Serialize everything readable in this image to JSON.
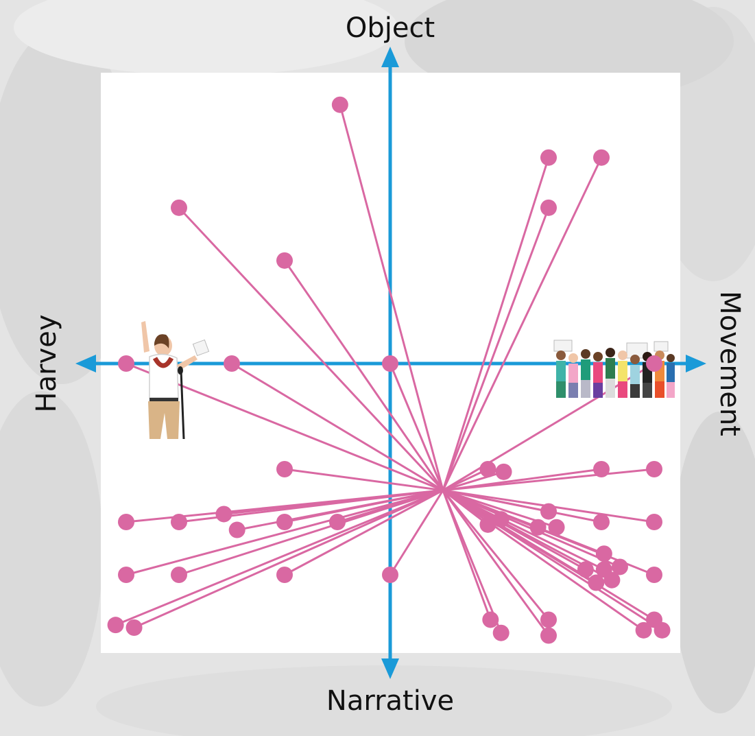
{
  "chart_data": {
    "type": "scatter",
    "axes": {
      "top": "Object",
      "bottom": "Narrative",
      "left": "Harvey",
      "right": "Movement"
    },
    "xlim": [
      -10,
      10
    ],
    "ylim": [
      -10,
      10
    ],
    "grid": false,
    "hub": [
      2,
      -4.8
    ],
    "points": [
      [
        -1.9,
        9.8
      ],
      [
        6.0,
        7.8
      ],
      [
        8.0,
        7.8
      ],
      [
        6.0,
        5.9
      ],
      [
        -8.0,
        5.9
      ],
      [
        -4.0,
        3.9
      ],
      [
        -10.0,
        0
      ],
      [
        -6.0,
        0
      ],
      [
        0,
        0
      ],
      [
        10.0,
        0
      ],
      [
        3.7,
        -4.0
      ],
      [
        4.3,
        -4.1
      ],
      [
        8.0,
        -4.0
      ],
      [
        10.0,
        -4.0
      ],
      [
        -4.0,
        -4.0
      ],
      [
        -10.0,
        -6.0
      ],
      [
        -8.0,
        -6.0
      ],
      [
        -6.3,
        -5.7
      ],
      [
        -5.8,
        -6.3
      ],
      [
        -4.0,
        -6.0
      ],
      [
        -2.0,
        -6.0
      ],
      [
        3.7,
        -6.1
      ],
      [
        4.2,
        -5.9
      ],
      [
        6.0,
        -5.6
      ],
      [
        5.6,
        -6.2
      ],
      [
        6.3,
        -6.2
      ],
      [
        8.0,
        -6.0
      ],
      [
        10.0,
        -6.0
      ],
      [
        8.1,
        -7.2
      ],
      [
        7.4,
        -7.8
      ],
      [
        8.1,
        -7.8
      ],
      [
        8.7,
        -7.7
      ],
      [
        7.8,
        -8.3
      ],
      [
        8.4,
        -8.2
      ],
      [
        -10.0,
        -8.0
      ],
      [
        -8.0,
        -8.0
      ],
      [
        -4.0,
        -8.0
      ],
      [
        0,
        -8.0
      ],
      [
        10.0,
        -8.0
      ],
      [
        3.8,
        -9.7
      ],
      [
        4.2,
        -10.2
      ],
      [
        6.0,
        -9.7
      ],
      [
        6.0,
        -10.3
      ],
      [
        10.0,
        -9.7
      ],
      [
        9.6,
        -10.1
      ],
      [
        10.3,
        -10.1
      ],
      [
        -10.4,
        -9.9
      ],
      [
        -9.7,
        -10.0
      ]
    ]
  },
  "colors": {
    "axis": "#1a9ad8",
    "marker": "#d968a2",
    "plot_bg": "#ffffff",
    "page_bg": "#e6e6e6"
  },
  "icons": {
    "left": "speaker-at-microphone-illustration",
    "right": "protest-crowd-illustration"
  }
}
